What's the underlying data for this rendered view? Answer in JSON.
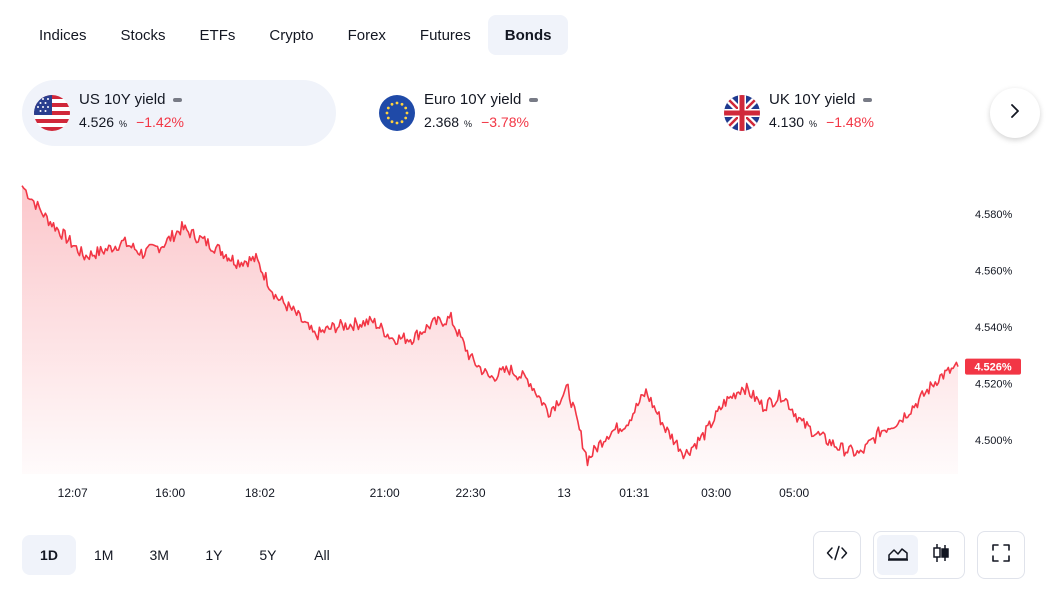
{
  "tabs": [
    {
      "label": "Indices",
      "active": false
    },
    {
      "label": "Stocks",
      "active": false
    },
    {
      "label": "ETFs",
      "active": false
    },
    {
      "label": "Crypto",
      "active": false
    },
    {
      "label": "Forex",
      "active": false
    },
    {
      "label": "Futures",
      "active": false
    },
    {
      "label": "Bonds",
      "active": true
    }
  ],
  "tickers": [
    {
      "name": "US 10Y yield",
      "price": "4.526",
      "unit": "%",
      "change": "−1.42%",
      "flag": "us-flag-icon",
      "active": true
    },
    {
      "name": "Euro 10Y yield",
      "price": "2.368",
      "unit": "%",
      "change": "−3.78%",
      "flag": "eu-flag-icon",
      "active": false
    },
    {
      "name": "UK 10Y yield",
      "price": "4.130",
      "unit": "%",
      "change": "−1.48%",
      "flag": "uk-flag-icon",
      "active": false
    }
  ],
  "colors": {
    "line": "#f23645",
    "negative": "#f23645",
    "active_bg": "#f0f3fa"
  },
  "chart_data": {
    "type": "area",
    "series": [
      {
        "x": [
          0,
          0.6,
          1.1,
          1.6,
          2.1,
          2.6,
          3.1,
          3.6,
          4.1,
          4.6,
          5.1,
          5.5,
          6,
          6.5,
          7,
          7.5,
          8,
          8.5,
          9,
          9.5,
          10,
          10.5,
          11,
          11.5,
          12,
          12.5,
          13,
          13.5,
          14,
          14.5,
          15,
          15.5,
          16,
          16.5,
          17,
          17.5,
          18,
          18.5,
          19,
          19.5,
          20,
          20.5,
          21,
          21.5,
          22,
          22.5,
          23,
          23.5,
          24
        ],
        "values": [
          4.59,
          4.579,
          4.572,
          4.565,
          4.567,
          4.57,
          4.566,
          4.569,
          4.575,
          4.571,
          4.567,
          4.563,
          4.564,
          4.551,
          4.545,
          4.537,
          4.54,
          4.541,
          4.542,
          4.536,
          4.536,
          4.541,
          4.543,
          4.529,
          4.522,
          4.525,
          4.521,
          4.51,
          4.518,
          4.493,
          4.502,
          4.506,
          4.517,
          4.504,
          4.495,
          4.502,
          4.513,
          4.519,
          4.512,
          4.516,
          4.506,
          4.501,
          4.497,
          4.495,
          4.503,
          4.507,
          4.514,
          4.522,
          4.526
        ]
      }
    ],
    "x_tick_labels": [
      "12:07",
      "16:00",
      "18:02",
      "21:00",
      "22:30",
      "13",
      "01:31",
      "03:00",
      "05:00"
    ],
    "y_tick_labels": [
      "4.500%",
      "4.520%",
      "4.540%",
      "4.560%",
      "4.580%"
    ],
    "ylim": [
      4.488,
      4.592
    ],
    "last_value_label": "4.526%",
    "grid": false
  },
  "ranges": [
    {
      "label": "1D",
      "active": true
    },
    {
      "label": "1M",
      "active": false
    },
    {
      "label": "3M",
      "active": false
    },
    {
      "label": "1Y",
      "active": false
    },
    {
      "label": "5Y",
      "active": false
    },
    {
      "label": "All",
      "active": false
    }
  ],
  "tools": {
    "embed": "code-icon",
    "area": "area-chart-icon",
    "candles": "candlestick-icon",
    "fullscreen": "fullscreen-icon"
  }
}
